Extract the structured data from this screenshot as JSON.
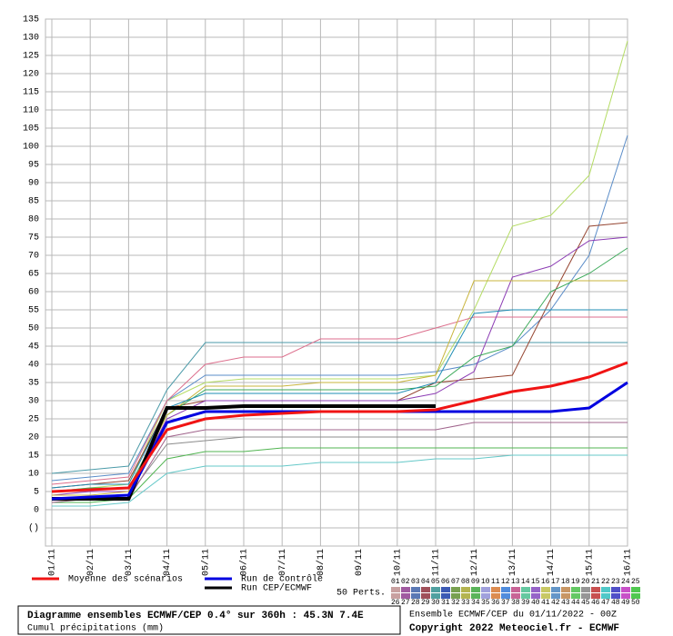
{
  "chart_data": {
    "type": "line",
    "title": "Diagramme ensembles ECMWF/CEP 0.4° sur 360h : 45.3N 7.4E",
    "subtitle": "Cumul précipitations (mm)",
    "run_info": "Ensemble ECMWF/CEP du 01/11/2022 - 00Z",
    "copyright": "Copyright 2022 Meteociel.fr - ECMWF",
    "perts_label": "50 Perts.",
    "perts_numbers": [
      "01",
      "02",
      "03",
      "04",
      "05",
      "06",
      "07",
      "08",
      "09",
      "10",
      "11",
      "12",
      "13",
      "14",
      "15",
      "16",
      "17",
      "18",
      "19",
      "20",
      "21",
      "22",
      "23",
      "24",
      "25",
      "26",
      "27",
      "28",
      "29",
      "30",
      "31",
      "32",
      "33",
      "34",
      "35",
      "36",
      "37",
      "38",
      "39",
      "40",
      "41",
      "42",
      "43",
      "44",
      "45",
      "46",
      "47",
      "48",
      "49",
      "50"
    ],
    "palette": [
      "#c8a0a0",
      "#a05aa0",
      "#5a78b4",
      "#a0505a",
      "#50a0a0",
      "#3c5ab4",
      "#78a050",
      "#b4b450",
      "#5ab45a",
      "#a0a0dc",
      "#dc8c50",
      "#508cdc",
      "#c86496",
      "#64c8a0",
      "#9664c8",
      "#c8c864",
      "#6496c8",
      "#c89664",
      "#64c864",
      "#969696",
      "#c85050",
      "#50c8c8",
      "#5050c8",
      "#c850c8",
      "#50c850"
    ],
    "categories": [
      "01/11",
      "02/11",
      "03/11",
      "04/11",
      "05/11",
      "06/11",
      "07/11",
      "08/11",
      "09/11",
      "10/11",
      "11/11",
      "12/11",
      "13/11",
      "14/11",
      "15/11",
      "16/11"
    ],
    "ylim": [
      -10,
      135
    ],
    "yticks": [
      {
        "value": -5,
        "label": "()"
      },
      0,
      5,
      10,
      15,
      20,
      25,
      30,
      35,
      40,
      45,
      50,
      55,
      60,
      65,
      70,
      75,
      80,
      85,
      90,
      95,
      100,
      105,
      110,
      115,
      120,
      125,
      130,
      135
    ],
    "grid": true,
    "series": [
      {
        "name": null,
        "color": "#b4dc64",
        "width": 1,
        "values": [
          5,
          6,
          7,
          30,
          35,
          36,
          36,
          36,
          36,
          36,
          37,
          55,
          78,
          81,
          92,
          129
        ]
      },
      {
        "name": null,
        "color": "#5a8cc8",
        "width": 1,
        "values": [
          8,
          9,
          10,
          30,
          37,
          37,
          37,
          37,
          37,
          37,
          38,
          40,
          45,
          55,
          70,
          103
        ]
      },
      {
        "name": null,
        "color": "#4a9aa8",
        "width": 1,
        "values": [
          10,
          11,
          12,
          33,
          46,
          46,
          46,
          46,
          46,
          46,
          46,
          46,
          46,
          46,
          46,
          46
        ]
      },
      {
        "name": null,
        "color": "#dc6e8c",
        "width": 1,
        "values": [
          7,
          8,
          9,
          30,
          40,
          42,
          42,
          47,
          47,
          47,
          50,
          53,
          53,
          53,
          53,
          53
        ]
      },
      {
        "name": null,
        "color": "#964632",
        "width": 1,
        "values": [
          6,
          7,
          8,
          28,
          30,
          30,
          30,
          30,
          30,
          30,
          35,
          36,
          37,
          58,
          78,
          79
        ]
      },
      {
        "name": null,
        "color": "#8c3cb4",
        "width": 1,
        "values": [
          4,
          5,
          5,
          25,
          30,
          30,
          30,
          30,
          30,
          30,
          32,
          38,
          64,
          67,
          74,
          75
        ]
      },
      {
        "name": null,
        "color": "#3caa5a",
        "width": 1,
        "values": [
          5,
          6,
          6,
          26,
          33,
          33,
          33,
          33,
          33,
          33,
          34,
          42,
          45,
          60,
          65,
          72
        ]
      },
      {
        "name": null,
        "color": "#c8b43c",
        "width": 1,
        "values": [
          4,
          4,
          5,
          26,
          34,
          34,
          34,
          35,
          35,
          35,
          37,
          63,
          63,
          63,
          63,
          63
        ]
      },
      {
        "name": null,
        "color": "#1e8cb4",
        "width": 1,
        "values": [
          6,
          7,
          7,
          28,
          32,
          32,
          32,
          32,
          32,
          32,
          35,
          54,
          55,
          55,
          55,
          55
        ]
      },
      {
        "name": null,
        "color": "#64c8c8",
        "width": 1,
        "values": [
          1,
          1,
          2,
          10,
          12,
          12,
          12,
          13,
          13,
          13,
          14,
          14,
          15,
          15,
          15,
          15
        ]
      },
      {
        "name": null,
        "color": "#50b450",
        "width": 1,
        "values": [
          2,
          2,
          3,
          14,
          16,
          16,
          17,
          17,
          17,
          17,
          17,
          17,
          17,
          17,
          17,
          17
        ]
      },
      {
        "name": null,
        "color": "#8c8c8c",
        "width": 1,
        "values": [
          3,
          3,
          4,
          18,
          19,
          20,
          20,
          20,
          20,
          20,
          20,
          20,
          20,
          20,
          20,
          20
        ]
      },
      {
        "name": null,
        "color": "#a0648c",
        "width": 1,
        "values": [
          2,
          3,
          3,
          20,
          22,
          22,
          22,
          22,
          22,
          22,
          22,
          24,
          24,
          24,
          24,
          24
        ]
      },
      {
        "name": "Run CEP/ECMWF",
        "color": "#000000",
        "width": 4,
        "values": [
          3,
          3,
          3,
          28,
          28,
          28.5,
          28.5,
          28.5,
          28.5,
          28.5,
          28.5,
          null,
          null,
          null,
          null,
          null
        ]
      },
      {
        "name": "Run de contrôle",
        "color": "#0000e0",
        "width": 3,
        "values": [
          3,
          3.5,
          4,
          24,
          27,
          27,
          27,
          27,
          27,
          27,
          27,
          27,
          27,
          27,
          28,
          35
        ]
      },
      {
        "name": "Moyenne des scénarios",
        "color": "#f01414",
        "width": 3,
        "values": [
          5,
          5.5,
          6,
          22,
          25,
          26,
          26.5,
          27,
          27,
          27,
          27.5,
          30,
          32.5,
          34,
          36.5,
          40.5
        ]
      }
    ]
  }
}
